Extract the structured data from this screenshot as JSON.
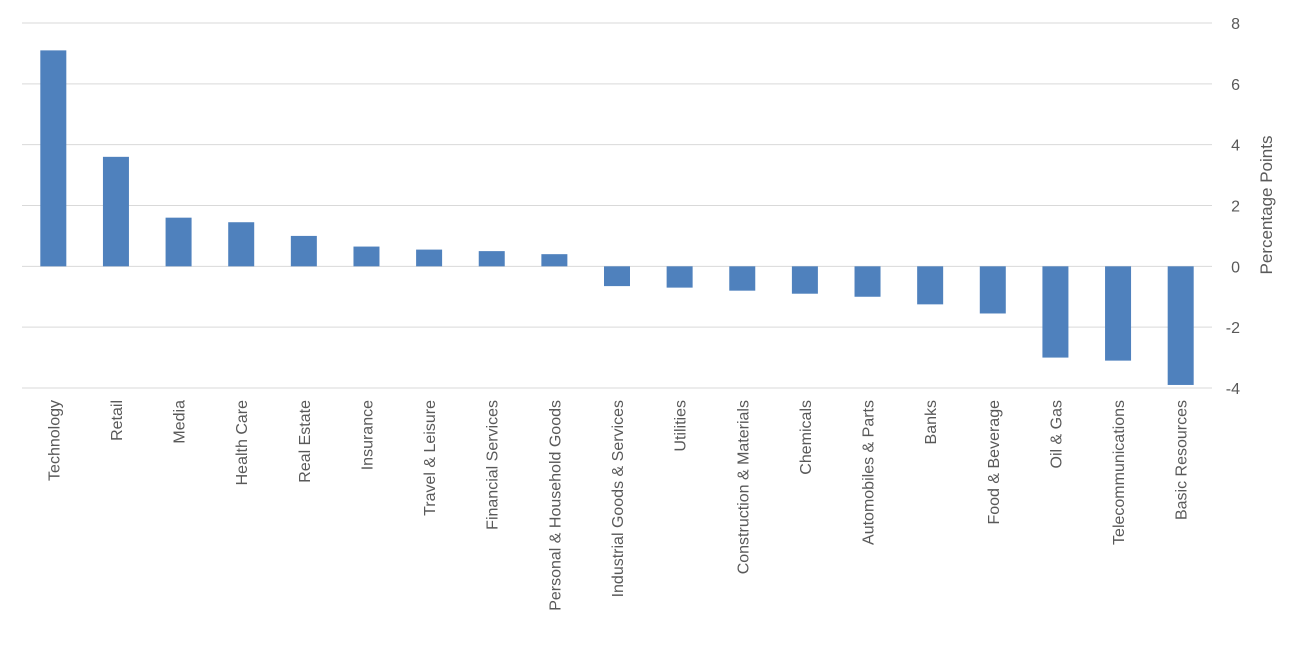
{
  "chart_data": {
    "type": "bar",
    "title": "",
    "xlabel": "",
    "ylabel": "Percentage Points",
    "ylim": [
      -4,
      8
    ],
    "yticks": [
      -4,
      -2,
      0,
      2,
      4,
      6,
      8
    ],
    "grid": true,
    "y_axis_position": "right",
    "bar_color": "#4f81bd",
    "categories": [
      "Technology",
      "Retail",
      "Media",
      "Health Care",
      "Real Estate",
      "Insurance",
      "Travel & Leisure",
      "Financial Services",
      "Personal & Household Goods",
      "Industrial Goods & Services",
      "Utilities",
      "Construction & Materials",
      "Chemicals",
      "Automobiles & Parts",
      "Banks",
      "Food & Beverage",
      "Oil & Gas",
      "Telecommunications",
      "Basic Resources"
    ],
    "values": [
      7.1,
      3.6,
      1.6,
      1.45,
      1.0,
      0.65,
      0.55,
      0.5,
      0.4,
      -0.65,
      -0.7,
      -0.8,
      -0.9,
      -1.0,
      -1.25,
      -1.55,
      -3.0,
      -3.1,
      -3.9
    ]
  }
}
